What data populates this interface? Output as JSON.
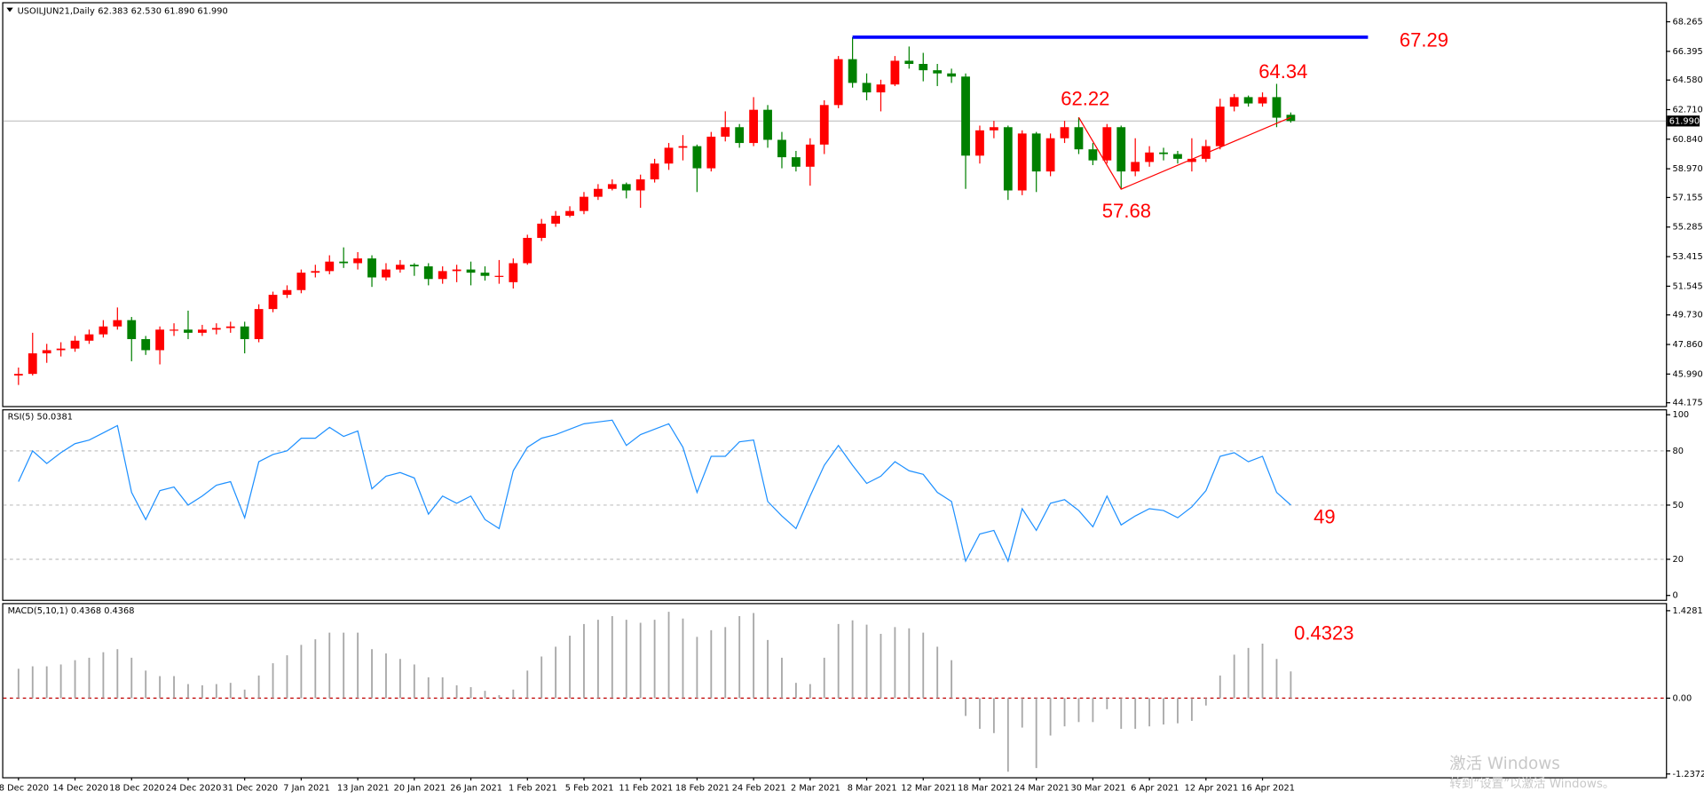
{
  "chart_data": [
    {
      "type": "candlestick",
      "title": "USOILJUN21,Daily",
      "subtitle": "62.383 62.530 61.890 61.990",
      "categories": [
        "8 Dec 2020",
        null,
        null,
        null,
        "14 Dec 2020",
        null,
        null,
        null,
        "18 Dec 2020",
        null,
        null,
        null,
        "24 Dec 2020",
        null,
        null,
        null,
        "31 Dec 2020",
        null,
        null,
        null,
        "7 Jan 2021",
        null,
        null,
        null,
        "13 Jan 2021",
        null,
        null,
        null,
        "20 Jan 2021",
        null,
        null,
        null,
        "26 Jan 2021",
        null,
        null,
        null,
        "1 Feb 2021",
        null,
        null,
        null,
        "5 Feb 2021",
        null,
        null,
        null,
        "11 Feb 2021",
        null,
        null,
        null,
        "18 Feb 2021",
        null,
        null,
        null,
        "24 Feb 2021",
        null,
        null,
        null,
        "2 Mar 2021",
        null,
        null,
        null,
        "8 Mar 2021",
        null,
        null,
        null,
        "12 Mar 2021",
        null,
        null,
        null,
        "18 Mar 2021",
        null,
        null,
        null,
        "24 Mar 2021",
        null,
        null,
        null,
        "30 Mar 2021",
        null,
        null,
        null,
        "6 Apr 2021",
        null,
        null,
        null,
        "12 Apr 2021",
        null,
        null,
        null,
        "16 Apr 2021",
        null,
        null
      ],
      "open": [
        45.9,
        46.0,
        47.3,
        47.5,
        47.6,
        48.1,
        48.5,
        49.0,
        49.4,
        48.2,
        47.5,
        48.8,
        48.8,
        48.6,
        48.8,
        48.9,
        49.0,
        48.2,
        50.1,
        51.0,
        51.3,
        52.4,
        52.5,
        53.1,
        53.0,
        53.3,
        52.1,
        52.6,
        52.9,
        52.8,
        52.0,
        52.5,
        52.6,
        52.4,
        52.2,
        51.8,
        53.0,
        54.6,
        55.5,
        56.0,
        56.3,
        57.2,
        57.7,
        58.0,
        57.6,
        58.3,
        59.3,
        60.3,
        60.4,
        59.0,
        61.0,
        61.6,
        60.6,
        62.7,
        60.8,
        59.7,
        59.1,
        60.5,
        63.0,
        65.9,
        64.4,
        63.8,
        64.3,
        65.8,
        65.6,
        65.2,
        65.0,
        64.8,
        59.8,
        61.4,
        61.6,
        57.6,
        61.2,
        58.8,
        60.9,
        61.6,
        60.2,
        59.5,
        61.6,
        58.8,
        59.4,
        60.0,
        59.9,
        59.4,
        59.6,
        60.4,
        62.9,
        63.5,
        63.1,
        63.5,
        62.383
      ],
      "high": [
        46.4,
        48.6,
        47.9,
        48.0,
        48.4,
        48.8,
        49.4,
        50.2,
        49.6,
        48.4,
        49.0,
        49.2,
        50.0,
        49.1,
        49.2,
        49.3,
        49.3,
        50.4,
        51.2,
        51.6,
        52.6,
        52.9,
        53.5,
        54.0,
        53.7,
        53.5,
        53.0,
        53.2,
        53.0,
        53.0,
        52.8,
        52.9,
        53.1,
        52.8,
        53.2,
        53.3,
        54.8,
        55.8,
        56.3,
        56.6,
        57.5,
        58.0,
        58.3,
        58.1,
        58.6,
        59.6,
        60.6,
        61.1,
        60.5,
        61.3,
        62.6,
        61.8,
        63.5,
        63.0,
        61.3,
        60.1,
        60.9,
        63.3,
        66.1,
        67.29,
        65.0,
        64.6,
        66.1,
        66.7,
        66.3,
        65.6,
        65.3,
        65.0,
        61.7,
        62.0,
        61.7,
        61.4,
        61.3,
        61.2,
        62.0,
        62.22,
        60.6,
        61.8,
        61.7,
        60.9,
        60.4,
        60.3,
        60.1,
        60.9,
        60.8,
        63.4,
        63.7,
        63.6,
        63.8,
        64.34,
        62.53
      ],
      "low": [
        45.3,
        45.9,
        46.7,
        47.1,
        47.4,
        47.9,
        48.3,
        48.8,
        46.8,
        47.2,
        46.6,
        48.4,
        48.2,
        48.4,
        48.5,
        48.6,
        47.3,
        48.0,
        49.9,
        50.8,
        51.1,
        52.1,
        52.3,
        52.7,
        52.6,
        51.5,
        51.9,
        52.4,
        52.2,
        51.6,
        51.7,
        51.8,
        51.6,
        51.9,
        51.7,
        51.4,
        52.9,
        54.4,
        55.3,
        55.9,
        56.1,
        57.0,
        57.6,
        57.1,
        56.5,
        58.1,
        58.9,
        59.5,
        57.5,
        58.8,
        60.7,
        60.3,
        60.4,
        60.3,
        59.0,
        58.8,
        57.9,
        59.9,
        62.8,
        64.1,
        63.3,
        62.6,
        64.2,
        65.3,
        64.5,
        64.2,
        64.4,
        57.7,
        59.3,
        60.9,
        57.0,
        57.3,
        57.5,
        58.5,
        60.6,
        59.9,
        59.2,
        59.3,
        57.68,
        58.5,
        59.1,
        59.5,
        59.3,
        58.8,
        59.4,
        60.2,
        62.6,
        62.9,
        62.9,
        61.6,
        61.89
      ],
      "close": [
        46.0,
        47.3,
        47.5,
        47.6,
        48.1,
        48.5,
        49.0,
        49.4,
        48.2,
        47.5,
        48.8,
        48.8,
        48.6,
        48.8,
        48.9,
        49.0,
        48.2,
        50.1,
        51.0,
        51.3,
        52.4,
        52.5,
        53.1,
        53.0,
        53.3,
        52.1,
        52.6,
        52.9,
        52.8,
        52.0,
        52.5,
        52.6,
        52.4,
        52.2,
        52.2,
        53.0,
        54.6,
        55.5,
        56.0,
        56.3,
        57.2,
        57.7,
        58.0,
        57.6,
        58.3,
        59.3,
        60.3,
        60.4,
        59.0,
        61.0,
        61.6,
        60.6,
        62.7,
        60.8,
        59.7,
        59.1,
        60.5,
        63.0,
        65.9,
        64.4,
        63.8,
        64.3,
        65.8,
        65.6,
        65.2,
        65.0,
        64.8,
        59.8,
        61.4,
        61.6,
        57.6,
        61.2,
        58.8,
        60.9,
        61.6,
        60.2,
        59.5,
        61.6,
        58.8,
        59.4,
        60.0,
        59.9,
        59.6,
        59.6,
        60.4,
        62.9,
        63.5,
        63.1,
        63.5,
        62.2,
        61.99
      ],
      "up_color": "#ff0000",
      "down_color": "#008000",
      "ylim": [
        44.175,
        68.265
      ],
      "yticks": [
        68.265,
        66.395,
        {
          "value": 64.58,
          "label": "64.580"
        },
        {
          "value": 62.71,
          "label": "62.710"
        },
        {
          "value": 60.84,
          "label": "60.840"
        },
        {
          "value": 58.97,
          "label": "58.970"
        },
        57.155,
        55.285,
        53.415,
        51.545,
        {
          "value": 49.73,
          "label": "49.730"
        },
        {
          "value": 47.86,
          "label": "47.860"
        },
        {
          "value": 45.99,
          "label": "45.990"
        },
        44.175
      ],
      "last_price": {
        "value": 61.99,
        "label": "61.990"
      },
      "levels": [
        67.29,
        62.22,
        57.68,
        64.34
      ],
      "level_color": "#0000ff",
      "trend_color": "#ff0000"
    },
    {
      "type": "line",
      "title": "RSI(5) 50.0381",
      "color": "#1e90ff",
      "values": [
        63,
        80,
        73,
        79,
        84,
        86,
        90,
        94,
        57,
        42,
        58,
        60,
        50,
        55,
        61,
        63,
        43,
        74,
        78,
        80,
        87,
        87,
        93,
        88,
        91,
        59,
        66,
        68,
        65,
        45,
        55,
        51,
        55,
        42,
        37,
        69,
        82,
        87,
        89,
        92,
        95,
        96,
        97,
        83,
        89,
        92,
        95,
        82,
        57,
        77,
        77,
        85,
        86,
        52,
        44,
        37,
        55,
        72,
        83,
        72,
        62,
        66,
        74,
        69,
        67,
        57,
        52,
        19,
        34,
        36,
        19,
        48,
        36,
        51,
        53,
        47,
        38,
        55,
        39,
        44,
        48,
        47,
        43,
        49,
        58,
        77,
        79,
        74,
        77,
        57,
        50.0381
      ],
      "ylim": [
        0,
        100
      ],
      "yticks": [
        0,
        20,
        50,
        80,
        100
      ],
      "annotation": 49
    },
    {
      "type": "bar",
      "title": "MACD(5,10,1) 0.4368 0.4368",
      "color": "#a8a8a8",
      "values": [
        0.48,
        0.52,
        0.52,
        0.55,
        0.62,
        0.66,
        0.75,
        0.8,
        0.66,
        0.45,
        0.36,
        0.36,
        0.23,
        0.21,
        0.23,
        0.25,
        0.14,
        0.37,
        0.57,
        0.7,
        0.87,
        0.96,
        1.07,
        1.07,
        1.07,
        0.8,
        0.73,
        0.64,
        0.55,
        0.34,
        0.34,
        0.21,
        0.18,
        0.12,
        0.05,
        0.14,
        0.45,
        0.68,
        0.84,
        1.02,
        1.21,
        1.28,
        1.34,
        1.28,
        1.23,
        1.28,
        1.41,
        1.3,
        1.0,
        1.11,
        1.16,
        1.34,
        1.39,
        0.95,
        0.66,
        0.25,
        0.23,
        0.66,
        1.21,
        1.27,
        1.2,
        1.05,
        1.16,
        1.14,
        1.07,
        0.84,
        0.62,
        -0.29,
        -0.5,
        -0.57,
        -1.2,
        -0.48,
        -1.14,
        -0.61,
        -0.46,
        -0.39,
        -0.39,
        -0.18,
        -0.5,
        -0.5,
        -0.46,
        -0.43,
        -0.41,
        -0.37,
        -0.12,
        0.37,
        0.71,
        0.82,
        0.89,
        0.64,
        0.4368
      ],
      "ylim": [
        -1.2372,
        1.4281
      ],
      "yticks": [
        1.4281,
        {
          "value": 0,
          "label": "0.00"
        },
        -1.2372
      ],
      "annotation": 0.4323
    }
  ],
  "watermark": {
    "line1": "激活 Windows",
    "line2": "转到“设置”以激活 Windows。"
  }
}
